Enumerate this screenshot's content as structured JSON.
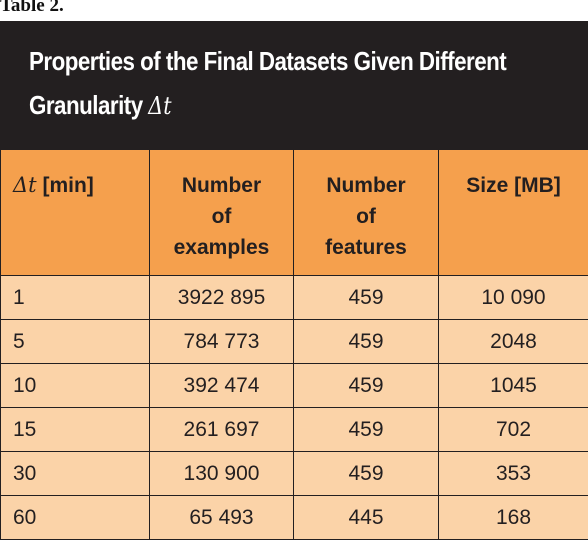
{
  "table_label": "Table 2.",
  "title": {
    "line1": "Properties of the Final Datasets Given Different",
    "line2_text": "Granularity",
    "line2_math": "Δt"
  },
  "headers": {
    "col1_math": "Δt",
    "col1_text": "[min]",
    "col2": [
      "Number",
      "of",
      "examples"
    ],
    "col3": [
      "Number",
      "of",
      "features"
    ],
    "col4": "Size [MB]"
  },
  "rows": [
    {
      "dt": "1",
      "examples": "3922 895",
      "features": "459",
      "size": "10 090"
    },
    {
      "dt": "5",
      "examples": "784 773",
      "features": "459",
      "size": "2048"
    },
    {
      "dt": "10",
      "examples": "392 474",
      "features": "459",
      "size": "1045"
    },
    {
      "dt": "15",
      "examples": "261 697",
      "features": "459",
      "size": "702"
    },
    {
      "dt": "30",
      "examples": "130 900",
      "features": "459",
      "size": "353"
    },
    {
      "dt": "60",
      "examples": "65 493",
      "features": "445",
      "size": "168"
    }
  ],
  "colors": {
    "title_background": "#231f20",
    "header_background": "#f5a04d",
    "cell_background": "#fbd3a8"
  }
}
